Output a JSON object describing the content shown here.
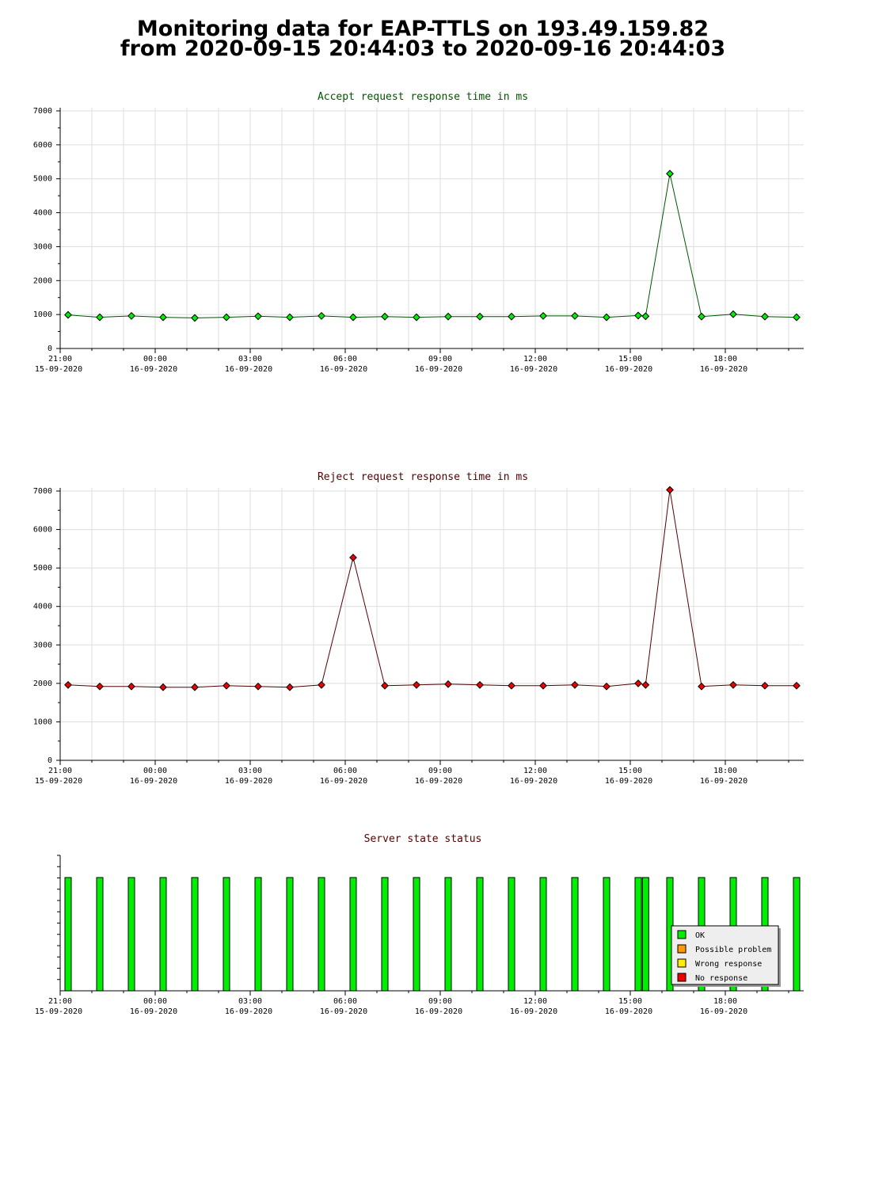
{
  "page": {
    "title_line1": "Monitoring data for EAP-TTLS on 193.49.159.82",
    "title_line2": "from 2020-09-15 20:44:03 to 2020-09-16 20:44:03"
  },
  "colors": {
    "accept_title": "#005500",
    "reject_title": "#550000",
    "status_title": "#550000",
    "accept_marker": "#00ee00",
    "reject_marker": "#ee0000",
    "accept_line": "#005500",
    "reject_line": "#550000",
    "grid": "#dddddd"
  },
  "x_axis": {
    "ticks": [
      {
        "time": "21:00",
        "date": "15-09-2020"
      },
      {
        "time": "00:00",
        "date": "16-09-2020"
      },
      {
        "time": "03:00",
        "date": "16-09-2020"
      },
      {
        "time": "06:00",
        "date": "16-09-2020"
      },
      {
        "time": "09:00",
        "date": "16-09-2020"
      },
      {
        "time": "12:00",
        "date": "16-09-2020"
      },
      {
        "time": "15:00",
        "date": "16-09-2020"
      },
      {
        "time": "18:00",
        "date": "16-09-2020"
      }
    ]
  },
  "chart_data": [
    {
      "type": "line",
      "title": "Accept request response time in ms",
      "xlabel": "",
      "ylabel": "",
      "ylim": [
        0,
        7000
      ],
      "yticks": [
        0,
        1000,
        2000,
        3000,
        4000,
        5000,
        6000,
        7000
      ],
      "grid": true,
      "x": [
        "2020-09-15 21:15",
        "2020-09-15 22:15",
        "2020-09-15 23:15",
        "2020-09-16 00:15",
        "2020-09-16 01:15",
        "2020-09-16 02:15",
        "2020-09-16 03:15",
        "2020-09-16 04:15",
        "2020-09-16 05:15",
        "2020-09-16 06:15",
        "2020-09-16 07:15",
        "2020-09-16 08:15",
        "2020-09-16 09:15",
        "2020-09-16 10:15",
        "2020-09-16 11:15",
        "2020-09-16 12:15",
        "2020-09-16 13:15",
        "2020-09-16 14:15",
        "2020-09-16 15:15",
        "2020-09-16 15:29",
        "2020-09-16 16:15",
        "2020-09-16 17:15",
        "2020-09-16 18:15",
        "2020-09-16 19:15",
        "2020-09-16 20:15"
      ],
      "series": [
        {
          "values": [
            990,
            920,
            960,
            920,
            900,
            920,
            950,
            920,
            960,
            920,
            940,
            920,
            940,
            940,
            940,
            960,
            960,
            920,
            970,
            950,
            5150,
            940,
            1010,
            940,
            920
          ]
        }
      ]
    },
    {
      "type": "line",
      "title": "Reject request response time in ms",
      "xlabel": "",
      "ylabel": "",
      "ylim": [
        0,
        7000
      ],
      "yticks": [
        0,
        1000,
        2000,
        3000,
        4000,
        5000,
        6000,
        7000
      ],
      "grid": true,
      "x": [
        "2020-09-15 21:15",
        "2020-09-15 22:15",
        "2020-09-15 23:15",
        "2020-09-16 00:15",
        "2020-09-16 01:15",
        "2020-09-16 02:15",
        "2020-09-16 03:15",
        "2020-09-16 04:15",
        "2020-09-16 05:15",
        "2020-09-16 06:15",
        "2020-09-16 07:15",
        "2020-09-16 08:15",
        "2020-09-16 09:15",
        "2020-09-16 10:15",
        "2020-09-16 11:15",
        "2020-09-16 12:15",
        "2020-09-16 13:15",
        "2020-09-16 14:15",
        "2020-09-16 15:15",
        "2020-09-16 15:29",
        "2020-09-16 16:15",
        "2020-09-16 17:15",
        "2020-09-16 18:15",
        "2020-09-16 19:15",
        "2020-09-16 20:15"
      ],
      "series": [
        {
          "values": [
            1960,
            1920,
            1920,
            1900,
            1900,
            1940,
            1920,
            1900,
            1960,
            5270,
            1940,
            1960,
            1980,
            1960,
            1940,
            1940,
            1960,
            1920,
            2000,
            1960,
            7030,
            1920,
            1960,
            1940,
            1940
          ]
        }
      ]
    },
    {
      "type": "bar",
      "title": "Server state status",
      "x": [
        "2020-09-15 21:15",
        "2020-09-15 22:15",
        "2020-09-15 23:15",
        "2020-09-16 00:15",
        "2020-09-16 01:15",
        "2020-09-16 02:15",
        "2020-09-16 03:15",
        "2020-09-16 04:15",
        "2020-09-16 05:15",
        "2020-09-16 06:15",
        "2020-09-16 07:15",
        "2020-09-16 08:15",
        "2020-09-16 09:15",
        "2020-09-16 10:15",
        "2020-09-16 11:15",
        "2020-09-16 12:15",
        "2020-09-16 13:15",
        "2020-09-16 14:15",
        "2020-09-16 15:15",
        "2020-09-16 15:29",
        "2020-09-16 16:15",
        "2020-09-16 17:15",
        "2020-09-16 18:15",
        "2020-09-16 19:15",
        "2020-09-16 20:15"
      ],
      "states": [
        "OK",
        "OK",
        "OK",
        "OK",
        "OK",
        "OK",
        "OK",
        "OK",
        "OK",
        "OK",
        "OK",
        "OK",
        "OK",
        "OK",
        "OK",
        "OK",
        "OK",
        "OK",
        "OK",
        "OK",
        "OK",
        "OK",
        "OK",
        "OK",
        "OK"
      ],
      "legend_position": "bottom-right",
      "legend": [
        {
          "label": "OK",
          "color": "#00ee00"
        },
        {
          "label": "Possible problem",
          "color": "#ff9900"
        },
        {
          "label": "Wrong response",
          "color": "#ffee00"
        },
        {
          "label": "No response",
          "color": "#ee0000"
        }
      ]
    }
  ]
}
